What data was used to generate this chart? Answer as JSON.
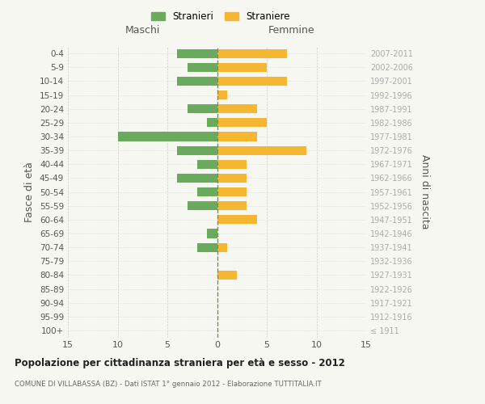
{
  "age_groups": [
    "100+",
    "95-99",
    "90-94",
    "85-89",
    "80-84",
    "75-79",
    "70-74",
    "65-69",
    "60-64",
    "55-59",
    "50-54",
    "45-49",
    "40-44",
    "35-39",
    "30-34",
    "25-29",
    "20-24",
    "15-19",
    "10-14",
    "5-9",
    "0-4"
  ],
  "birth_years": [
    "≤ 1911",
    "1912-1916",
    "1917-1921",
    "1922-1926",
    "1927-1931",
    "1932-1936",
    "1937-1941",
    "1942-1946",
    "1947-1951",
    "1952-1956",
    "1957-1961",
    "1962-1966",
    "1967-1971",
    "1972-1976",
    "1977-1981",
    "1982-1986",
    "1987-1991",
    "1992-1996",
    "1997-2001",
    "2002-2006",
    "2007-2011"
  ],
  "males": [
    0,
    0,
    0,
    0,
    0,
    0,
    2,
    1,
    0,
    3,
    2,
    4,
    2,
    4,
    10,
    1,
    3,
    0,
    4,
    3,
    4
  ],
  "females": [
    0,
    0,
    0,
    0,
    2,
    0,
    1,
    0,
    4,
    3,
    3,
    3,
    3,
    9,
    4,
    5,
    4,
    1,
    7,
    5,
    7
  ],
  "color_male": "#6aaa5c",
  "color_female": "#f5b731",
  "title": "Popolazione per cittadinanza straniera per età e sesso - 2012",
  "subtitle": "COMUNE DI VILLABASSA (BZ) - Dati ISTAT 1° gennaio 2012 - Elaborazione TUTTITALIA.IT",
  "xlabel_left": "Maschi",
  "xlabel_right": "Femmine",
  "ylabel_left": "Fasce di età",
  "ylabel_right": "Anni di nascita",
  "legend_male": "Stranieri",
  "legend_female": "Straniere",
  "xlim": 15,
  "background_color": "#f7f7f2"
}
